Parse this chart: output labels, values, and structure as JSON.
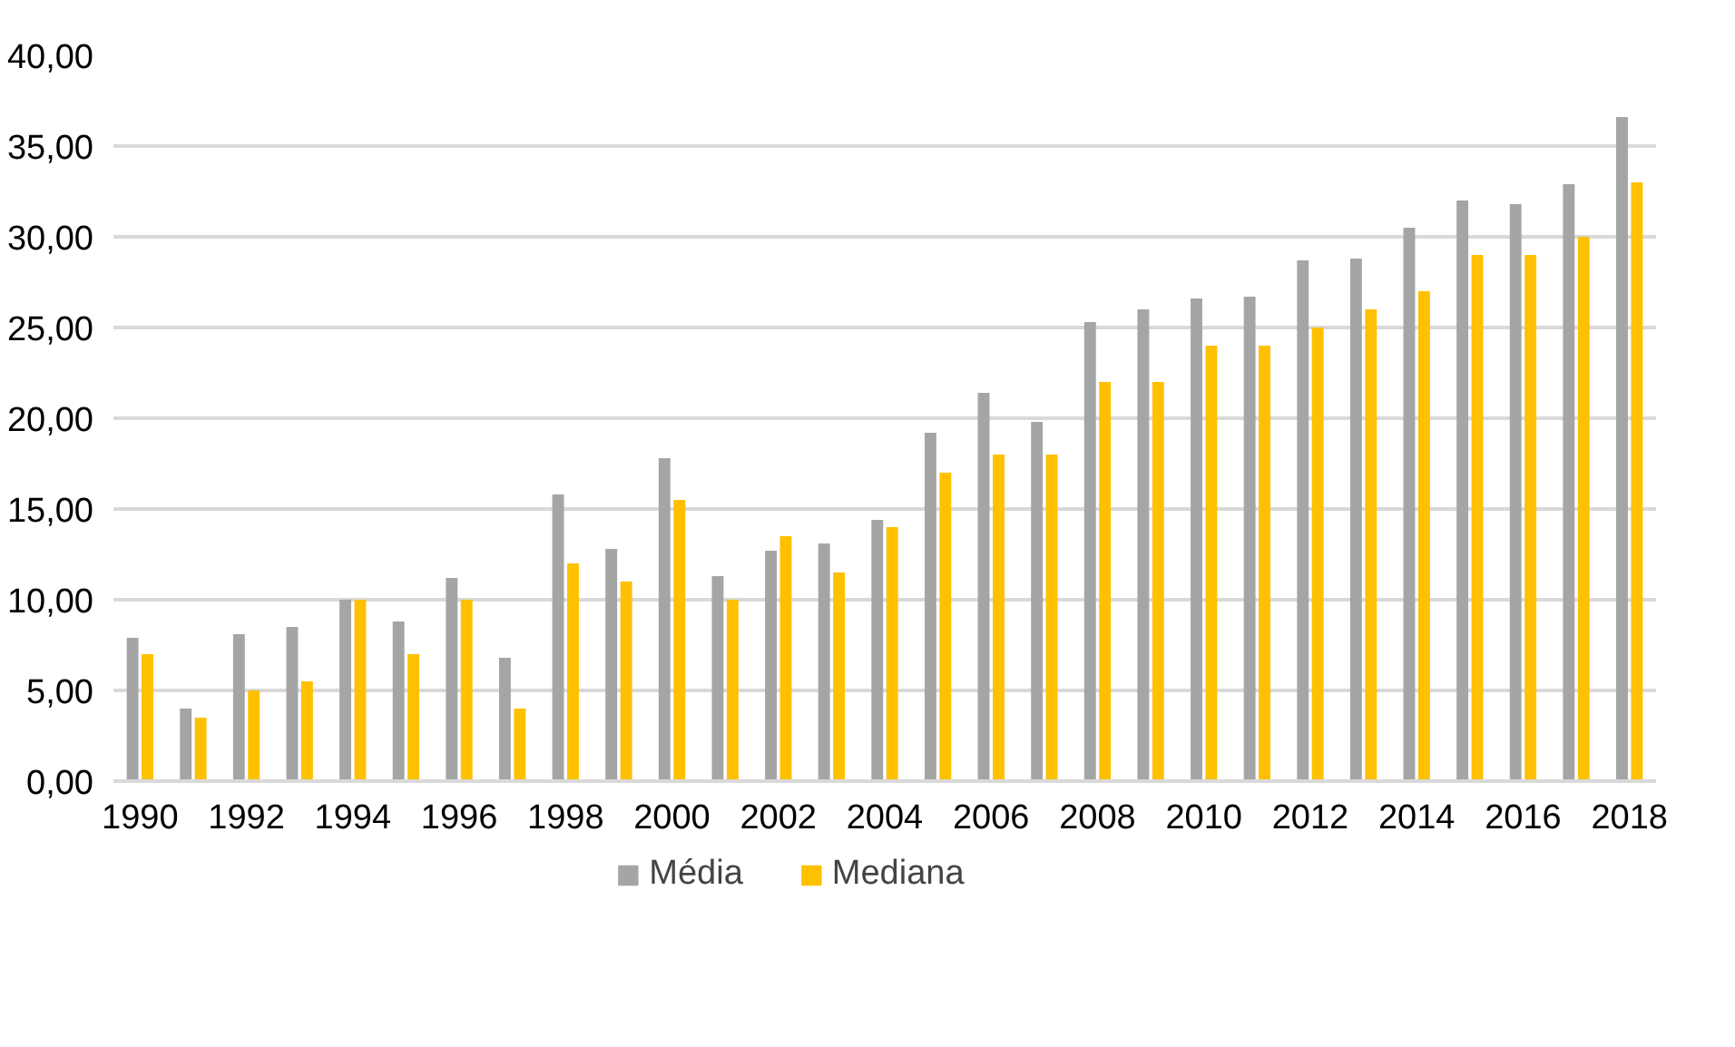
{
  "chart_data": {
    "type": "bar",
    "categories": [
      "1990",
      null,
      "1992",
      null,
      "1994",
      null,
      "1996",
      null,
      "1998",
      null,
      "2000",
      null,
      "2002",
      null,
      "2004",
      null,
      "2006",
      null,
      "2008",
      null,
      "2010",
      null,
      "2012",
      null,
      "2014",
      null,
      "2016",
      null,
      "2018"
    ],
    "series": [
      {
        "name": "Média",
        "color": "#a5a5a5",
        "values": [
          7.9,
          4.0,
          8.1,
          8.5,
          10.0,
          8.8,
          11.2,
          6.8,
          15.8,
          12.8,
          17.8,
          11.3,
          12.7,
          13.1,
          14.4,
          19.2,
          21.4,
          19.8,
          25.3,
          26.0,
          26.6,
          26.7,
          28.7,
          28.8,
          30.5,
          32.0,
          31.8,
          32.9,
          36.6
        ]
      },
      {
        "name": "Mediana",
        "color": "#ffc000",
        "values": [
          7.0,
          3.5,
          5.0,
          5.5,
          10.0,
          7.0,
          10.0,
          4.0,
          12.0,
          11.0,
          15.5,
          10.0,
          13.5,
          11.5,
          14.0,
          17.0,
          18.0,
          18.0,
          22.0,
          22.0,
          24.0,
          24.0,
          25.0,
          26.0,
          27.0,
          29.0,
          29.0,
          30.0,
          33.0
        ]
      }
    ],
    "ylim": [
      0,
      40
    ],
    "yticks": [
      {
        "value": 0,
        "label": "0,00"
      },
      {
        "value": 5,
        "label": "5,00"
      },
      {
        "value": 10,
        "label": "10,00"
      },
      {
        "value": 15,
        "label": "15,00"
      },
      {
        "value": 20,
        "label": "20,00"
      },
      {
        "value": 25,
        "label": "25,00"
      },
      {
        "value": 30,
        "label": "30,00"
      },
      {
        "value": 35,
        "label": "35,00"
      },
      {
        "value": 40,
        "label": "40,00"
      }
    ],
    "grid": "y",
    "legend": "bottom"
  }
}
